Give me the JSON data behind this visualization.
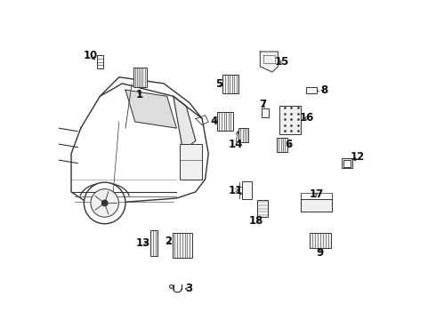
{
  "bg_color": "#ffffff",
  "fig_width": 4.9,
  "fig_height": 3.6,
  "dpi": 100,
  "line_color": "#333333",
  "label_color": "#111111",
  "label_fontsize": 8.5
}
